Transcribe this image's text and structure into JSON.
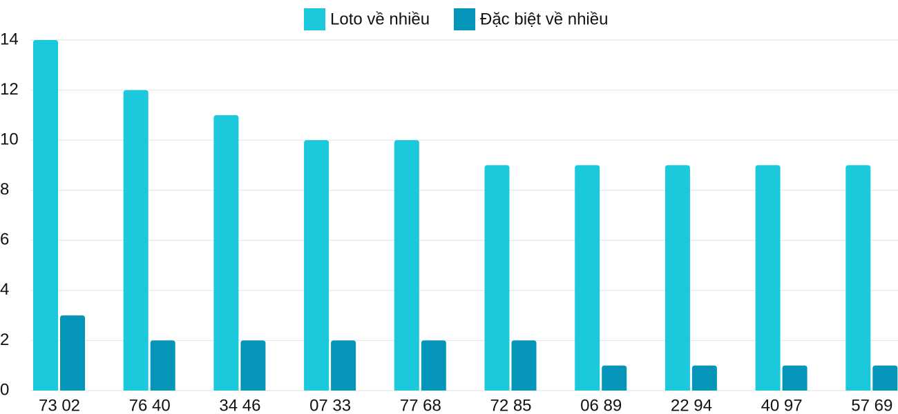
{
  "chart_data": {
    "type": "bar",
    "categories": [
      "73 02",
      "76 40",
      "34 46",
      "07 33",
      "77 68",
      "72 85",
      "06 89",
      "22 94",
      "40 97",
      "57 69"
    ],
    "series": [
      {
        "name": "Loto về nhiều",
        "color": "#1bc8dc",
        "values": [
          14,
          12,
          11,
          10,
          10,
          9,
          9,
          9,
          9,
          9
        ]
      },
      {
        "name": "Đặc biệt về nhiều",
        "color": "#0595b8",
        "values": [
          3,
          2,
          2,
          2,
          2,
          2,
          1,
          1,
          1,
          1
        ]
      }
    ],
    "ylim": [
      0,
      14
    ],
    "yticks": [
      0,
      2,
      4,
      6,
      8,
      10,
      12,
      14
    ],
    "grid": true
  }
}
